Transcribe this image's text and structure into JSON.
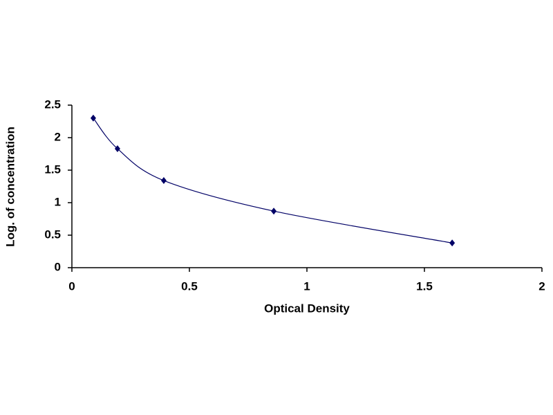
{
  "chart_data": {
    "type": "scatter",
    "x_label": "Optical Density",
    "y_label": "Log. of concentration",
    "x": [
      0.091,
      0.194,
      0.391,
      0.859,
      1.618
    ],
    "values": [
      2.3,
      1.83,
      1.34,
      0.87,
      0.38
    ],
    "color": "#000066",
    "smooth_line": true,
    "xlim": [
      0,
      2
    ],
    "xticks": [
      0,
      0.5,
      1,
      1.5,
      2
    ],
    "ylim": [
      0,
      2.5
    ],
    "yticks": [
      0,
      0.5,
      1,
      1.5,
      2,
      2.5
    ],
    "grid": false
  }
}
